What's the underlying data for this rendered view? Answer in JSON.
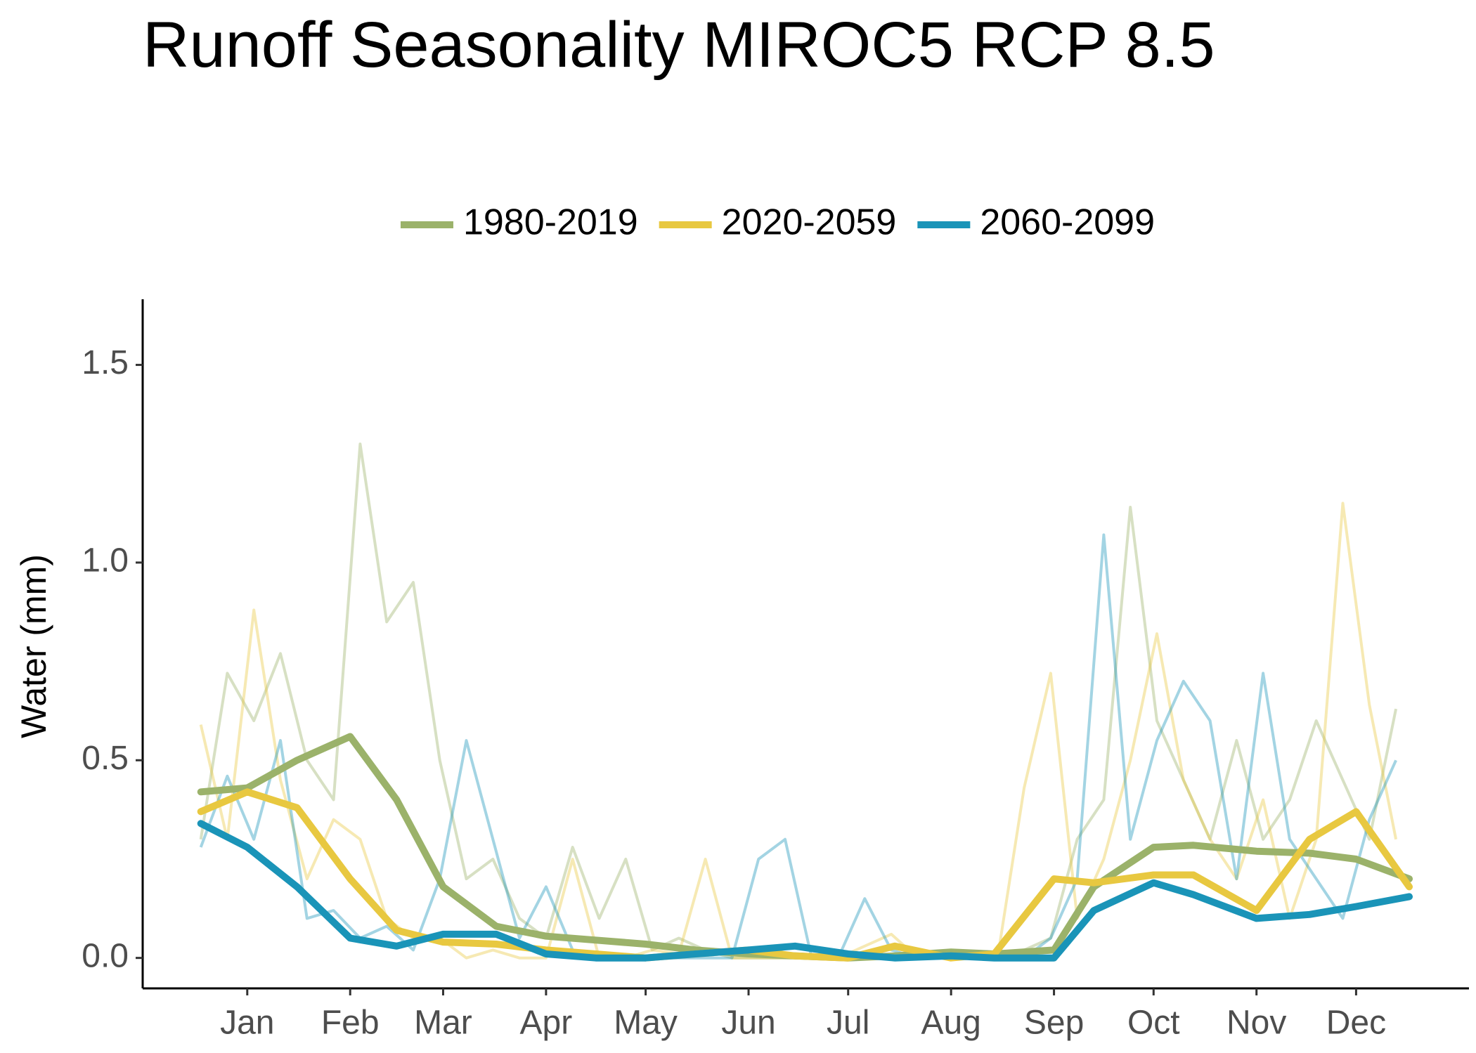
{
  "chart_data": {
    "type": "line",
    "title": "Runoff Seasonality MIROC5 RCP 8.5",
    "y_label": "Water (mm)",
    "legend_position": "top",
    "x": [
      1,
      15,
      30,
      46,
      60,
      74,
      90,
      105,
      120,
      135,
      150,
      166,
      180,
      196,
      210,
      227,
      240,
      258,
      270,
      288,
      300,
      319,
      335,
      349,
      365
    ],
    "x_raw": [
      1,
      9,
      17,
      25,
      33,
      41,
      49,
      57,
      65,
      73,
      81,
      89,
      97,
      105,
      113,
      121,
      129,
      137,
      145,
      153,
      161,
      169,
      177,
      185,
      193,
      201,
      209,
      217,
      225,
      233,
      241,
      249,
      257,
      265,
      273,
      281,
      289,
      297,
      305,
      313,
      321,
      329,
      337,
      345,
      353,
      361
    ],
    "series": [
      {
        "name": "1980-2019",
        "color": "#9bb26a",
        "values": [
          0.42,
          0.43,
          0.5,
          0.56,
          0.4,
          0.18,
          0.08,
          0.055,
          0.045,
          0.035,
          0.02,
          0.01,
          0.005,
          0,
          0.005,
          0.015,
          0.01,
          0.02,
          0.18,
          0.28,
          0.285,
          0.27,
          0.265,
          0.25,
          0.2
        ],
        "raw_values": [
          0.3,
          0.72,
          0.6,
          0.77,
          0.5,
          0.4,
          1.3,
          0.85,
          0.95,
          0.5,
          0.2,
          0.25,
          0.1,
          0.05,
          0.28,
          0.1,
          0.25,
          0.02,
          0.05,
          0.02,
          0,
          0,
          0,
          0,
          0,
          0,
          0,
          0.02,
          0,
          0,
          0.01,
          0.02,
          0.05,
          0.3,
          0.4,
          1.14,
          0.6,
          0.45,
          0.3,
          0.55,
          0.3,
          0.4,
          0.6,
          0.45,
          0.3,
          0.63
        ]
      },
      {
        "name": "2020-2059",
        "color": "#e8c840",
        "values": [
          0.37,
          0.42,
          0.38,
          0.2,
          0.07,
          0.04,
          0.035,
          0.02,
          0.01,
          0,
          0.01,
          0.02,
          0.005,
          0,
          0.03,
          0,
          0.01,
          0.2,
          0.19,
          0.21,
          0.21,
          0.12,
          0.3,
          0.37,
          0.18
        ],
        "raw_values": [
          0.59,
          0.3,
          0.88,
          0.45,
          0.2,
          0.35,
          0.3,
          0.1,
          0.05,
          0.05,
          0,
          0.02,
          0,
          0,
          0.25,
          0,
          0,
          0.02,
          0.01,
          0.25,
          0,
          0,
          0,
          0,
          0,
          0.03,
          0.06,
          0,
          0,
          0,
          0,
          0.43,
          0.72,
          0.1,
          0.25,
          0.5,
          0.82,
          0.45,
          0.3,
          0.2,
          0.4,
          0.1,
          0.3,
          1.15,
          0.64,
          0.3
        ]
      },
      {
        "name": "2060-2099",
        "color": "#1a94b8",
        "values": [
          0.34,
          0.28,
          0.18,
          0.05,
          0.03,
          0.06,
          0.06,
          0.01,
          0,
          0,
          0.01,
          0.02,
          0.03,
          0.01,
          0,
          0.005,
          0,
          0,
          0.12,
          0.19,
          0.16,
          0.1,
          0.11,
          0.13,
          0.155
        ],
        "raw_values": [
          0.28,
          0.46,
          0.3,
          0.55,
          0.1,
          0.12,
          0.05,
          0.08,
          0.02,
          0.2,
          0.55,
          0.3,
          0.05,
          0.18,
          0.02,
          0,
          0,
          0,
          0,
          0,
          0,
          0.25,
          0.3,
          0,
          0,
          0.15,
          0.02,
          0,
          0,
          0,
          0,
          0,
          0.05,
          0.2,
          1.07,
          0.3,
          0.55,
          0.7,
          0.6,
          0.2,
          0.72,
          0.3,
          0.2,
          0.1,
          0.35,
          0.5
        ]
      }
    ],
    "xlim": [
      -16.5,
      383
    ],
    "xticks": [
      {
        "value": 15,
        "label": "Jan"
      },
      {
        "value": 46,
        "label": "Feb"
      },
      {
        "value": 74,
        "label": "Mar"
      },
      {
        "value": 105,
        "label": "Apr"
      },
      {
        "value": 135,
        "label": "May"
      },
      {
        "value": 166,
        "label": "Jun"
      },
      {
        "value": 196,
        "label": "Jul"
      },
      {
        "value": 227,
        "label": "Aug"
      },
      {
        "value": 258,
        "label": "Sep"
      },
      {
        "value": 288,
        "label": "Oct"
      },
      {
        "value": 319,
        "label": "Nov"
      },
      {
        "value": 349,
        "label": "Dec"
      }
    ],
    "ylim": [
      -0.077,
      1.666
    ],
    "yticks": [
      {
        "value": 0,
        "label": "0.0"
      },
      0.5,
      {
        "value": 1,
        "label": "1.0"
      },
      1.5
    ],
    "grid": false
  }
}
